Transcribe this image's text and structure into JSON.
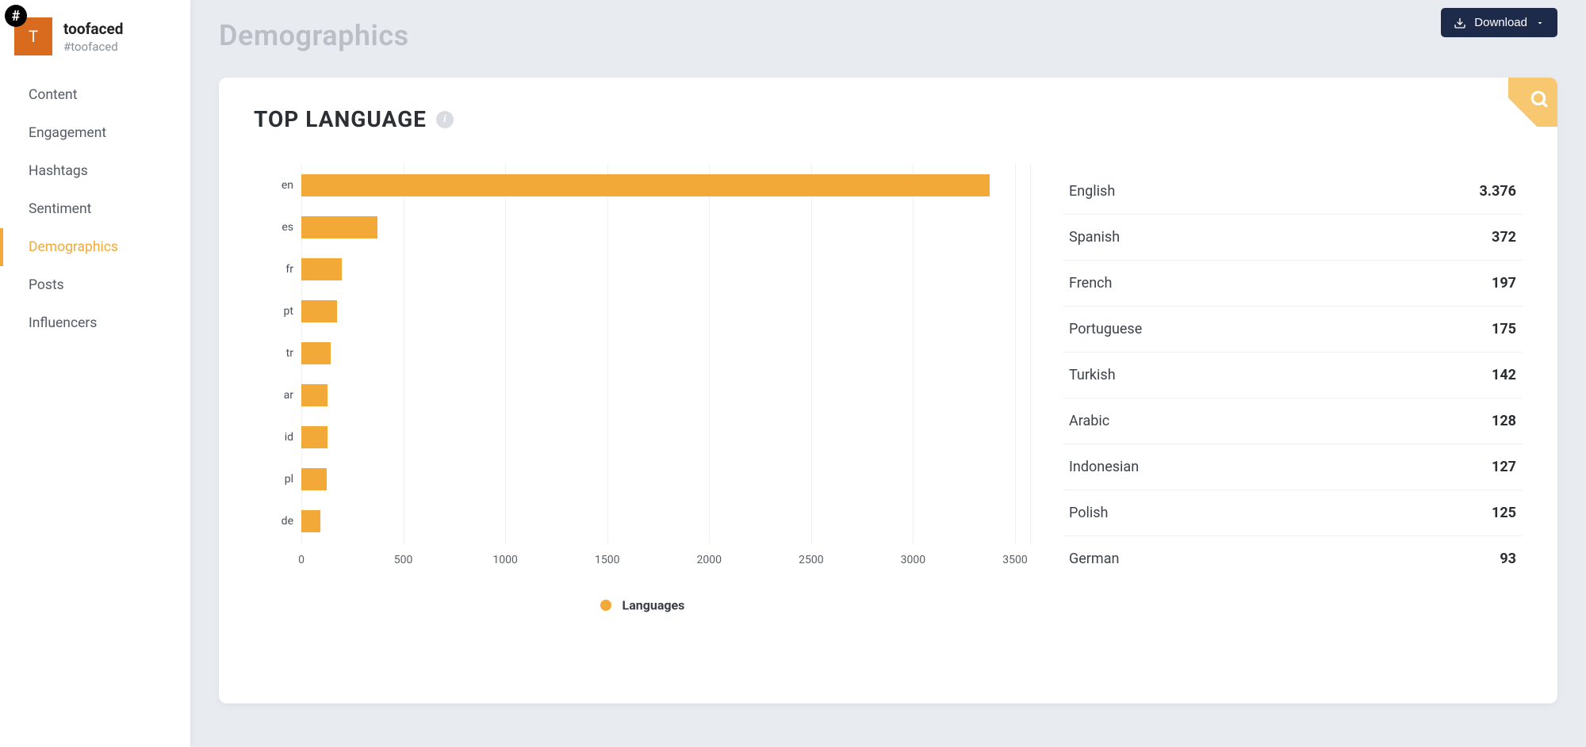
{
  "brand": {
    "avatar_letter": "T",
    "name": "toofaced",
    "tag": "#toofaced"
  },
  "sidebar": {
    "items": [
      {
        "label": "Content",
        "active": false
      },
      {
        "label": "Engagement",
        "active": false
      },
      {
        "label": "Hashtags",
        "active": false
      },
      {
        "label": "Sentiment",
        "active": false
      },
      {
        "label": "Demographics",
        "active": true
      },
      {
        "label": "Posts",
        "active": false
      },
      {
        "label": "Influencers",
        "active": false
      }
    ]
  },
  "header": {
    "title": "Demographics",
    "download_label": "Download"
  },
  "card": {
    "title": "TOP LANGUAGE",
    "legend_label": "Languages",
    "chart": {
      "type": "bar-horizontal",
      "bar_color": "#f2a938",
      "grid_color": "#eef0f2",
      "background": "#ffffff",
      "xmax": 3500,
      "xtick_step": 500,
      "xticks": [
        "0",
        "500",
        "1000",
        "1500",
        "2000",
        "2500",
        "3000",
        "3500"
      ],
      "categories": [
        "en",
        "es",
        "fr",
        "pt",
        "tr",
        "ar",
        "id",
        "pl",
        "de"
      ],
      "values": [
        3376,
        372,
        197,
        175,
        142,
        128,
        127,
        125,
        93
      ]
    },
    "table": [
      {
        "name": "English",
        "value": "3.376"
      },
      {
        "name": "Spanish",
        "value": "372"
      },
      {
        "name": "French",
        "value": "197"
      },
      {
        "name": "Portuguese",
        "value": "175"
      },
      {
        "name": "Turkish",
        "value": "142"
      },
      {
        "name": "Arabic",
        "value": "128"
      },
      {
        "name": "Indonesian",
        "value": "127"
      },
      {
        "name": "Polish",
        "value": "125"
      },
      {
        "name": "German",
        "value": "93"
      }
    ]
  }
}
